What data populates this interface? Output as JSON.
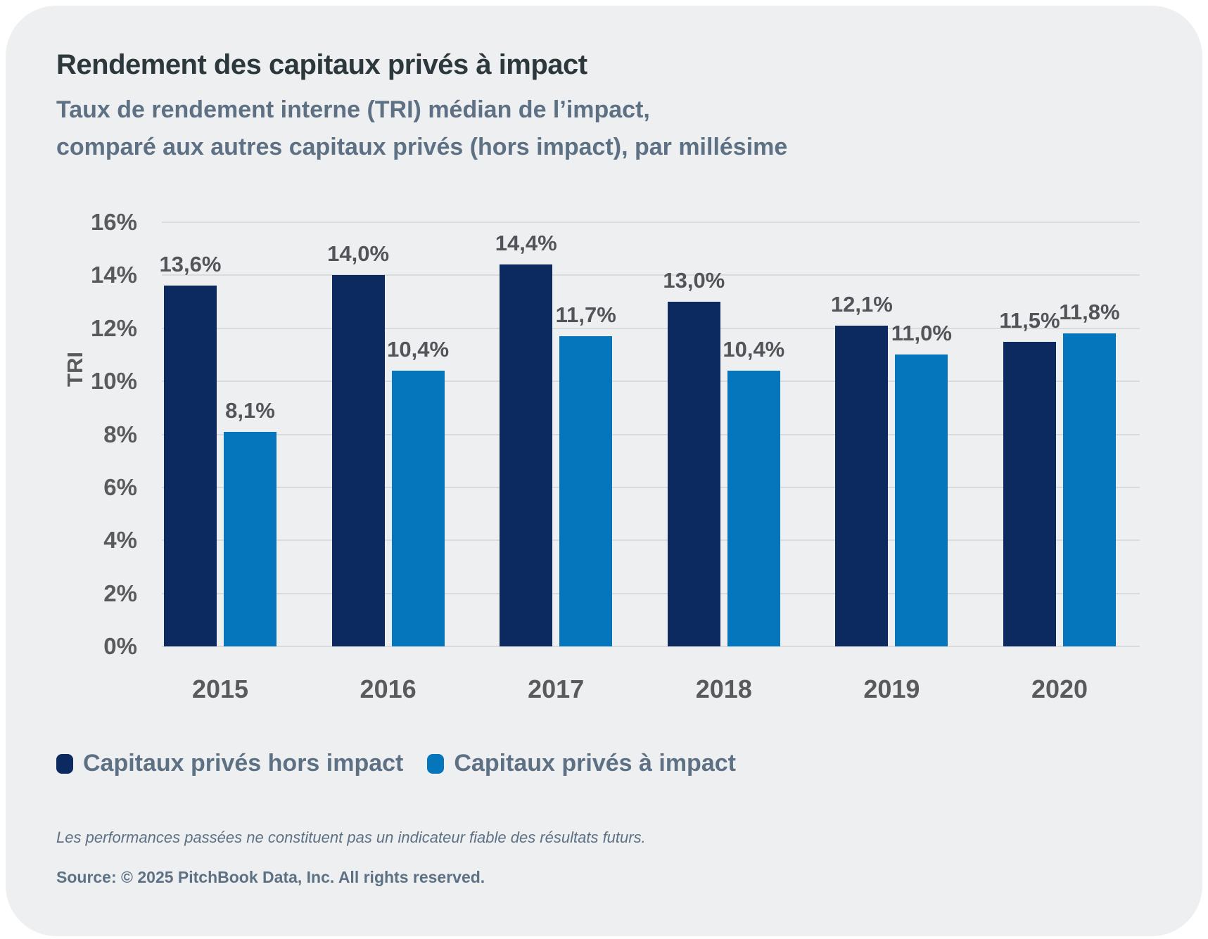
{
  "chart_data": {
    "type": "bar",
    "title": "Rendement des capitaux privés à impact",
    "subtitle_line1": "Taux de rendement interne (TRI) médian de l’impact,",
    "subtitle_line2": "comparé aux autres capitaux privés (hors impact), par millésime",
    "categories": [
      "2015",
      "2016",
      "2017",
      "2018",
      "2019",
      "2020"
    ],
    "series": [
      {
        "name": "Capitaux privés hors impact",
        "color": "#0c2a60",
        "values": [
          13.6,
          14.0,
          14.4,
          13.0,
          12.1,
          11.5
        ],
        "labels": [
          "13,6%",
          "14,0%",
          "14,4%",
          "13,0%",
          "12,1%",
          "11,5%"
        ]
      },
      {
        "name": "Capitaux privés à impact",
        "color": "#0575bc",
        "values": [
          8.1,
          10.4,
          11.7,
          10.4,
          11.0,
          11.8
        ],
        "labels": [
          "8,1%",
          "10,4%",
          "11,7%",
          "10,4%",
          "11,0%",
          "11,8%"
        ]
      }
    ],
    "xlabel": "",
    "ylabel": "TRI",
    "ylim": [
      0,
      16
    ],
    "yticks": [
      0,
      2,
      4,
      6,
      8,
      10,
      12,
      14,
      16
    ],
    "ytick_labels": [
      "0%",
      "2%",
      "4%",
      "6%",
      "8%",
      "10%",
      "12%",
      "14%",
      "16%"
    ],
    "grid": true,
    "legend_position": "bottom-left"
  },
  "footer": {
    "disclaimer": "Les performances passées ne constituent pas un indicateur fiable des résultats futurs.",
    "source": "Source: © 2025 PitchBook Data, Inc. All rights reserved."
  },
  "colors": {
    "page_background": "#ffffff",
    "card_background": "#edeff1",
    "series_navy": "#0c2a60",
    "series_blue": "#0575bc",
    "title_text": "#2d383c",
    "slate_text": "#5e7184",
    "axis_text": "#595a5c",
    "gridline": "#d9dbdd"
  }
}
